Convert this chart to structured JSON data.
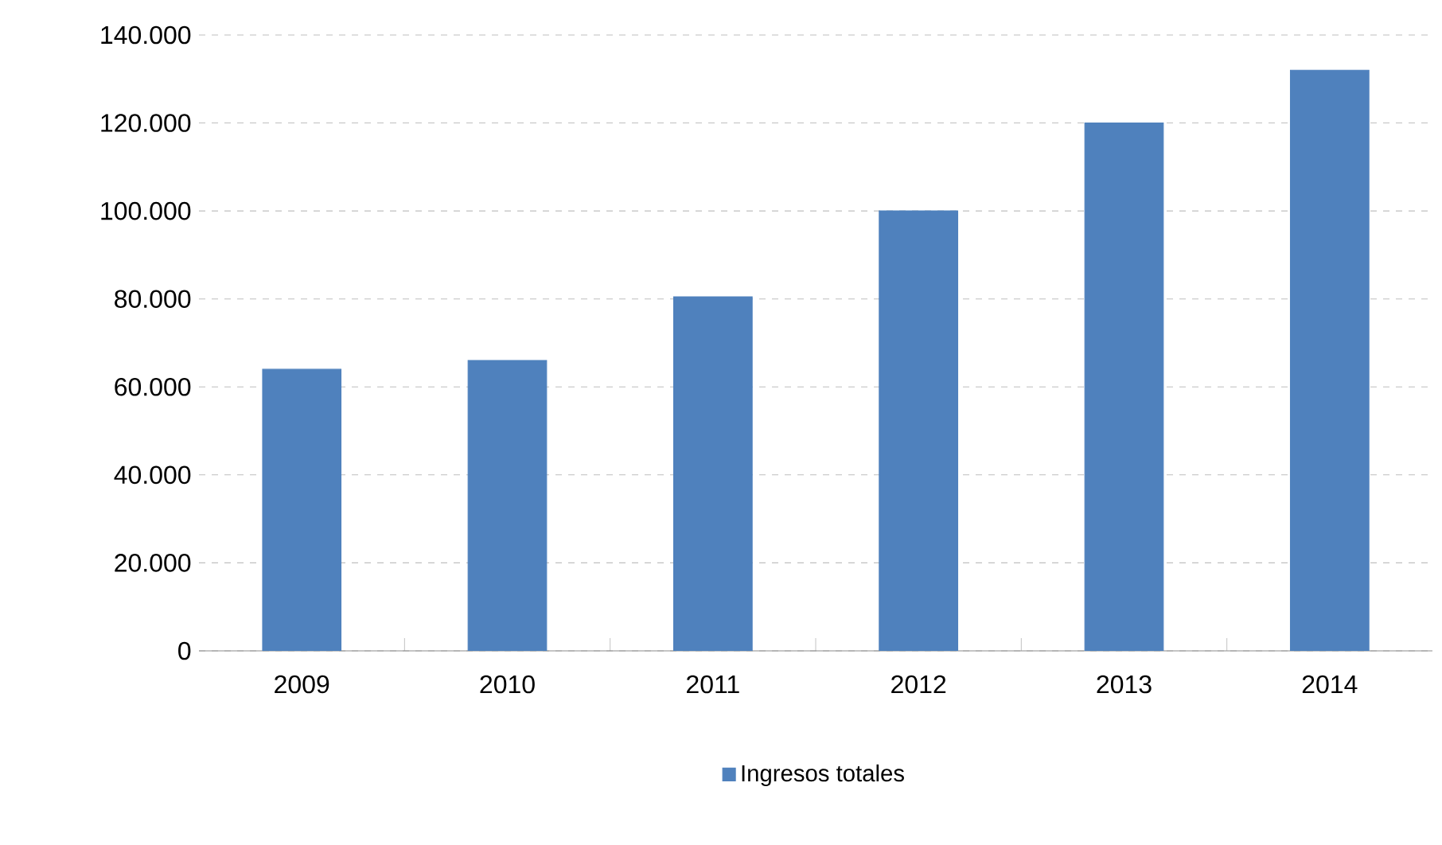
{
  "chart_data": {
    "type": "bar",
    "categories": [
      "2009",
      "2010",
      "2011",
      "2012",
      "2013",
      "2014"
    ],
    "series": [
      {
        "name": "Ingresos totales",
        "color": "#4f81bd",
        "values": [
          64000,
          66000,
          80500,
          100000,
          120000,
          132000
        ]
      }
    ],
    "ylim": [
      0,
      140000
    ],
    "yticks": [
      {
        "value": 0,
        "label": "0"
      },
      {
        "value": 20000,
        "label": "20.000"
      },
      {
        "value": 40000,
        "label": "40.000"
      },
      {
        "value": 60000,
        "label": "60.000"
      },
      {
        "value": 80000,
        "label": "80.000"
      },
      {
        "value": 100000,
        "label": "100.000"
      },
      {
        "value": 120000,
        "label": "120.000"
      },
      {
        "value": 140000,
        "label": "140.000"
      }
    ],
    "grid": "y",
    "legend": "bottom"
  }
}
